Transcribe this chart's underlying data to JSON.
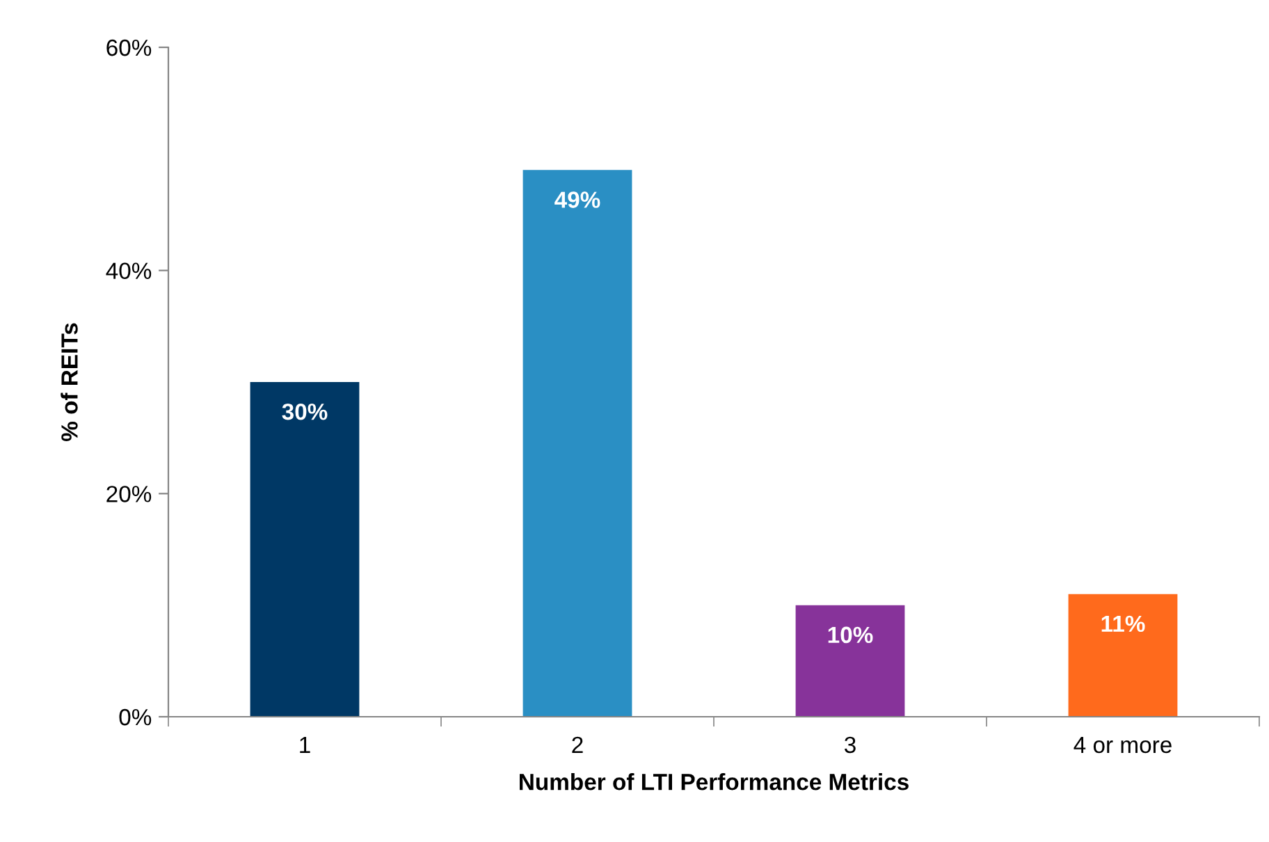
{
  "chart_data": {
    "type": "bar",
    "xlabel": "Number of LTI Performance Metrics",
    "ylabel": "% of REITs",
    "categories": [
      "1",
      "2",
      "3",
      "4 or more"
    ],
    "values": [
      30,
      49,
      10,
      11
    ],
    "colors": [
      "#003865",
      "#2a8fc4",
      "#87339a",
      "#ff6a1c"
    ],
    "value_labels": [
      "30%",
      "49%",
      "10%",
      "11%"
    ],
    "ylim": [
      0,
      60
    ],
    "yticks": [
      {
        "value": 0,
        "label": "0%"
      },
      {
        "value": 20,
        "label": "20%"
      },
      {
        "value": 40,
        "label": "40%"
      },
      {
        "value": 60,
        "label": "60%"
      }
    ],
    "grid": false,
    "legend": false
  }
}
